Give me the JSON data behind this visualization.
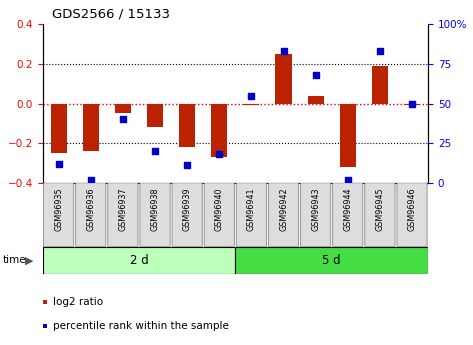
{
  "title": "GDS2566 / 15133",
  "samples": [
    "GSM96935",
    "GSM96936",
    "GSM96937",
    "GSM96938",
    "GSM96939",
    "GSM96940",
    "GSM96941",
    "GSM96942",
    "GSM96943",
    "GSM96944",
    "GSM96945",
    "GSM96946"
  ],
  "log2_ratio": [
    -0.25,
    -0.24,
    -0.05,
    -0.12,
    -0.22,
    -0.27,
    -0.01,
    0.25,
    0.04,
    -0.32,
    0.19,
    -0.01
  ],
  "percentile_rank": [
    12,
    2,
    40,
    20,
    11,
    18,
    55,
    83,
    68,
    2,
    83,
    50
  ],
  "groups": [
    {
      "label": "2 d",
      "start": 0,
      "end": 6,
      "color": "#bbffbb"
    },
    {
      "label": "5 d",
      "start": 6,
      "end": 12,
      "color": "#44dd44"
    }
  ],
  "bar_color": "#bb2200",
  "dot_color": "#0000cc",
  "ylim_left": [
    -0.4,
    0.4
  ],
  "ylim_right": [
    0,
    100
  ],
  "yticks_left": [
    -0.4,
    -0.2,
    0.0,
    0.2,
    0.4
  ],
  "yticks_right": [
    0,
    25,
    50,
    75,
    100
  ],
  "ytick_labels_right": [
    "0",
    "25",
    "50",
    "75",
    "100%"
  ],
  "hlines": [
    -0.2,
    0.0,
    0.2
  ],
  "zero_line_color": "#dd0000",
  "bg_color": "#ffffff",
  "time_label": "time",
  "legend_red": "log2 ratio",
  "legend_blue": "percentile rank within the sample",
  "sample_box_color": "#dddddd",
  "sample_box_edge": "#888888"
}
